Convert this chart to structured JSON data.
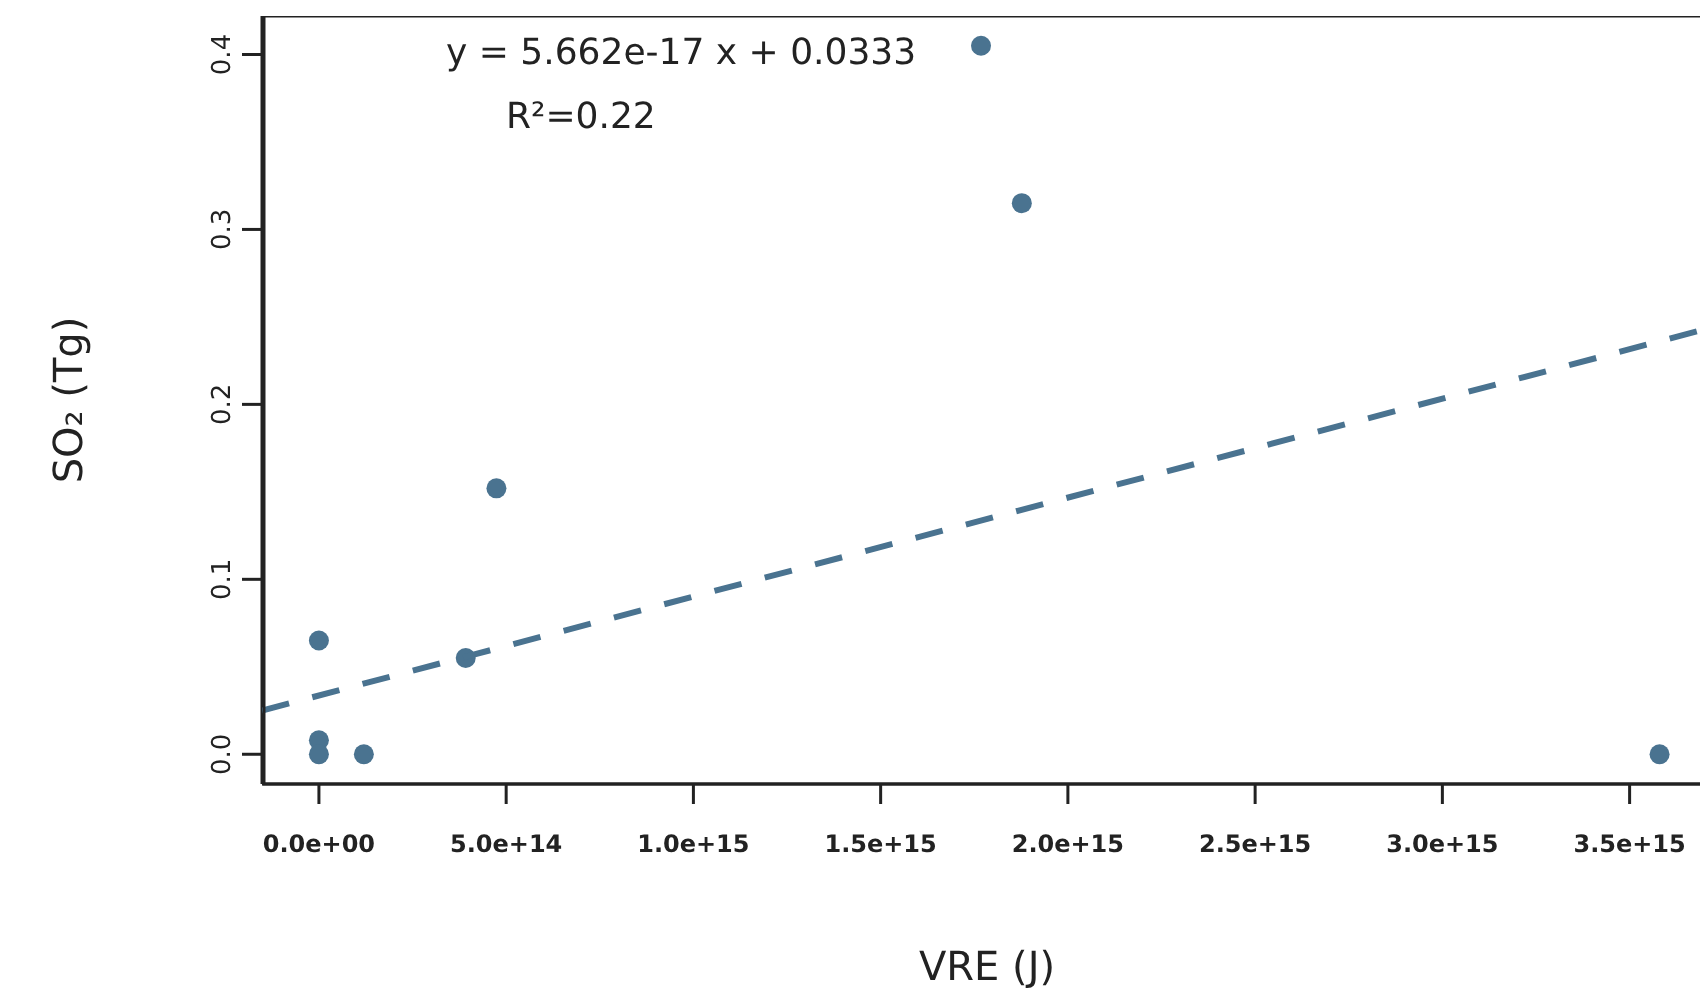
{
  "chart_data": {
    "type": "scatter",
    "xlabel": "VRE (J)",
    "ylabel": "SO₂ (Tg)",
    "annotations": [
      "y = 5.662e-17 x + 0.0333",
      "R²=0.22"
    ],
    "x": [
      0,
      0,
      0,
      120000000000000,
      392000000000000,
      474000000000000,
      1768000000000000,
      1877000000000000,
      3580000000000000
    ],
    "series": [
      {
        "color": "#4a7390",
        "marker": "circle",
        "values": [
          0.065,
          0.008,
          0,
          0,
          0.055,
          0.152,
          0.405,
          0.315,
          0
        ]
      },
      {
        "type": "line",
        "color": "#4a7390",
        "marker": "none",
        "line_style": "dashed",
        "x": [
          -152000000000000,
          3720000000000000
        ],
        "values": [
          0.025,
          0.244
        ]
      }
    ],
    "xlim": [
      -152000000000000,
      3720000000000000
    ],
    "xticks": [
      {
        "value": 0,
        "label": "0.0e+00"
      },
      {
        "value": 500000000000000,
        "label": "5.0e+14"
      },
      {
        "value": 1000000000000000,
        "label": "1.0e+15"
      },
      {
        "value": 1500000000000000,
        "label": "1.5e+15"
      },
      {
        "value": 2000000000000000,
        "label": "2.0e+15"
      },
      {
        "value": 2500000000000000,
        "label": "2.5e+15"
      },
      {
        "value": 3000000000000000,
        "label": "3.0e+15"
      },
      {
        "value": 3500000000000000,
        "label": "3.5e+15"
      }
    ],
    "ylim": [
      -0.017,
      0.422
    ],
    "yticks": [
      {
        "value": 0,
        "label": "0.0"
      },
      {
        "value": 0.1,
        "label": "0.1"
      },
      {
        "value": 0.2,
        "label": "0.2"
      },
      {
        "value": 0.3,
        "label": "0.3"
      },
      {
        "value": 0.4,
        "label": "0.4"
      }
    ],
    "grid": false,
    "legend": false
  }
}
